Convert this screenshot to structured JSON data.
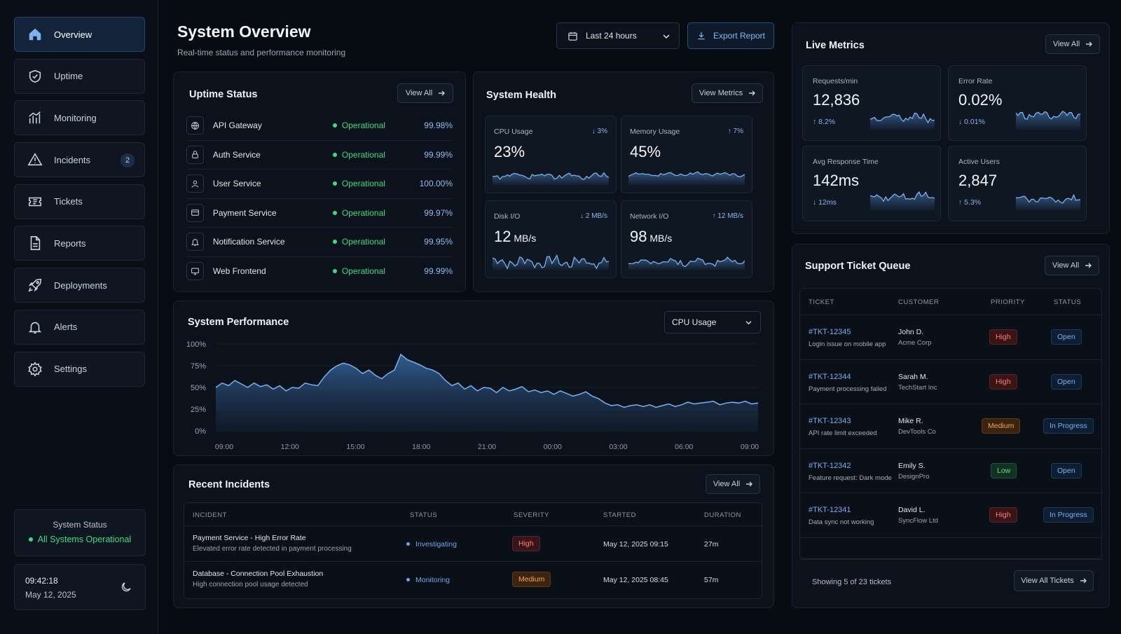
{
  "sidebar": {
    "items": [
      {
        "label": "Overview",
        "icon": "home-icon",
        "active": true
      },
      {
        "label": "Uptime",
        "icon": "shield-check-icon"
      },
      {
        "label": "Monitoring",
        "icon": "bar-chart-icon"
      },
      {
        "label": "Incidents",
        "icon": "warning-triangle-icon",
        "badge": "2"
      },
      {
        "label": "Tickets",
        "icon": "ticket-icon"
      },
      {
        "label": "Reports",
        "icon": "document-icon"
      },
      {
        "label": "Deployments",
        "icon": "rocket-icon"
      },
      {
        "label": "Alerts",
        "icon": "bell-icon"
      },
      {
        "label": "Settings",
        "icon": "gear-icon"
      }
    ],
    "system_status": {
      "title": "System Status",
      "status": "All Systems Operational"
    },
    "clock": {
      "time": "09:42:18",
      "date": "May 12, 2025"
    }
  },
  "header": {
    "title": "System Overview",
    "subtitle": "Real-time status and performance monitoring",
    "range": "Last 24 hours",
    "export": "Export Report"
  },
  "uptime": {
    "title": "Uptime Status",
    "view_all": "View All",
    "services": [
      {
        "name": "API Gateway",
        "status": "Operational",
        "pct": "99.98%",
        "icon": "globe-icon"
      },
      {
        "name": "Auth Service",
        "status": "Operational",
        "pct": "99.99%",
        "icon": "lock-icon"
      },
      {
        "name": "User Service",
        "status": "Operational",
        "pct": "100.00%",
        "icon": "user-icon"
      },
      {
        "name": "Payment Service",
        "status": "Operational",
        "pct": "99.97%",
        "icon": "card-icon"
      },
      {
        "name": "Notification Service",
        "status": "Operational",
        "pct": "99.95%",
        "icon": "bell-icon"
      },
      {
        "name": "Web Frontend",
        "status": "Operational",
        "pct": "99.99%",
        "icon": "monitor-icon"
      }
    ]
  },
  "health": {
    "title": "System Health",
    "view_metrics": "View Metrics",
    "tiles": [
      {
        "label": "CPU Usage",
        "change": "↓ 3%",
        "value": "23%",
        "unit": ""
      },
      {
        "label": "Memory Usage",
        "change": "↑ 7%",
        "value": "45%",
        "unit": ""
      },
      {
        "label": "Disk I/O",
        "change": "↓ 2 MB/s",
        "value": "12",
        "unit": " MB/s"
      },
      {
        "label": "Network I/O",
        "change": "↑ 12 MB/s",
        "value": "98",
        "unit": " MB/s"
      }
    ]
  },
  "performance": {
    "title": "System Performance",
    "metric": "CPU Usage",
    "chart_data": {
      "type": "area",
      "yticks": [
        "100%",
        "75%",
        "50%",
        "25%",
        "0%"
      ],
      "xticks": [
        "09:00",
        "12:00",
        "15:00",
        "18:00",
        "21:00",
        "00:00",
        "03:00",
        "06:00",
        "09:00"
      ],
      "ylim": [
        0,
        100
      ],
      "values": [
        50,
        55,
        52,
        58,
        54,
        50,
        55,
        51,
        53,
        48,
        52,
        46,
        50,
        49,
        55,
        53,
        52,
        62,
        70,
        75,
        78,
        76,
        72,
        66,
        70,
        64,
        60,
        66,
        70,
        88,
        82,
        79,
        76,
        72,
        70,
        66,
        58,
        52,
        55,
        48,
        52,
        46,
        50,
        49,
        44,
        50,
        46,
        48,
        51,
        45,
        47,
        44,
        46,
        42,
        46,
        43,
        40,
        42,
        45,
        40,
        37,
        32,
        29,
        30,
        27,
        29,
        30,
        28,
        30,
        27,
        29,
        31,
        28,
        30,
        33,
        31,
        32,
        33,
        34,
        30,
        32,
        33,
        32,
        34,
        31,
        32
      ]
    }
  },
  "incidents": {
    "title": "Recent Incidents",
    "view_all": "View All",
    "columns": [
      "INCIDENT",
      "STATUS",
      "SEVERITY",
      "STARTED",
      "DURATION"
    ],
    "rows": [
      {
        "name": "Payment Service - High Error Rate",
        "desc": "Elevated error rate detected in payment processing",
        "status": "Investigating",
        "severity": "High",
        "started": "May 12, 2025 09:15",
        "duration": "27m"
      },
      {
        "name": "Database - Connection Pool Exhaustion",
        "desc": "High connection pool usage detected",
        "status": "Monitoring",
        "severity": "Medium",
        "started": "May 12, 2025 08:45",
        "duration": "57m"
      }
    ]
  },
  "live": {
    "title": "Live Metrics",
    "view_all": "View All",
    "tiles": [
      {
        "label": "Requests/min",
        "value": "12,836",
        "change": "↑ 8.2%"
      },
      {
        "label": "Error Rate",
        "value": "0.02%",
        "change": "↓ 0.01%"
      },
      {
        "label": "Avg Response Time",
        "value": "142ms",
        "change": "↓ 12ms"
      },
      {
        "label": "Active Users",
        "value": "2,847",
        "change": "↑ 5.3%"
      }
    ]
  },
  "tickets": {
    "title": "Support Ticket Queue",
    "view_all": "View All",
    "columns": [
      "TICKET",
      "CUSTOMER",
      "PRIORITY",
      "STATUS"
    ],
    "rows": [
      {
        "id": "#TKT-12345",
        "subject": "Login issue on mobile app",
        "customer": "John D.",
        "company": "Acme Corp",
        "priority": "High",
        "status": "Open"
      },
      {
        "id": "#TKT-12344",
        "subject": "Payment processing failed",
        "customer": "Sarah M.",
        "company": "TechStart Inc",
        "priority": "High",
        "status": "Open"
      },
      {
        "id": "#TKT-12343",
        "subject": "API rate limit exceeded",
        "customer": "Mike R.",
        "company": "DevTools Co",
        "priority": "Medium",
        "status": "In Progress"
      },
      {
        "id": "#TKT-12342",
        "subject": "Feature request: Dark mode",
        "customer": "Emily S.",
        "company": "DesignPro",
        "priority": "Low",
        "status": "Open"
      },
      {
        "id": "#TKT-12341",
        "subject": "Data sync not working",
        "customer": "David L.",
        "company": "SyncFlow Ltd",
        "priority": "High",
        "status": "In Progress"
      }
    ],
    "showing": "Showing 5 of 23 tickets",
    "view_all_tickets": "View All Tickets"
  },
  "colors": {
    "accent": "#6ea7e8",
    "ok": "#3ddc84",
    "high": "#ff7b7b",
    "medium": "#f3a34a",
    "low": "#5be08f"
  }
}
